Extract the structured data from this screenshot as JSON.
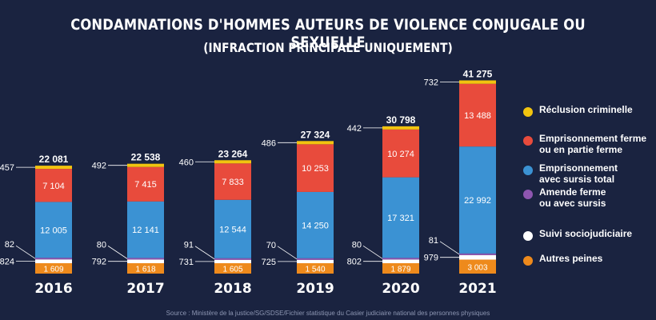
{
  "title": "CONDAMNATIONS D'HOMMES AUTEURS  DE VIOLENCE CONJUGALE OU SEXUELLE",
  "subtitle": "(INFRACTION PRINCIPALE UNIQUEMENT)",
  "source": "Source : Ministère de la justice/SG/SDSE/Fichier statistique du Casier judiciaire national des personnes physiques",
  "colors": {
    "reclusion": "#f2c40f",
    "emprisonnement_ferme": "#e84b3c",
    "emprisonnement_sursis": "#3b92d3",
    "amende": "#8e56b0",
    "suivi": "#ffffff",
    "autres": "#ee8a1c",
    "background": "#1a2340"
  },
  "legend": [
    {
      "key": "reclusion",
      "label": "Réclusion criminelle"
    },
    {
      "key": "emprisonnement_ferme",
      "label": "Emprisonnement ferme\nou en partie ferme"
    },
    {
      "key": "emprisonnement_sursis",
      "label": "Emprisonnement\navec sursis total"
    },
    {
      "key": "amende",
      "label": "Amende ferme\nou avec sursis"
    },
    {
      "key": "suivi",
      "label": "Suivi sociojudiciaire"
    },
    {
      "key": "autres",
      "label": "Autres peines"
    }
  ],
  "chart_data": {
    "type": "bar",
    "stacked": true,
    "title": "CONDAMNATIONS D'HOMMES AUTEURS  DE VIOLENCE CONJUGALE OU SEXUELLE",
    "subtitle": "(INFRACTION PRINCIPALE UNIQUEMENT)",
    "categories": [
      "2016",
      "2017",
      "2018",
      "2019",
      "2020",
      "2021"
    ],
    "totals": [
      "22 081",
      "22 538",
      "23 264",
      "27 324",
      "30 798",
      "41 275"
    ],
    "legend_position": "right",
    "series": [
      {
        "key": "autres",
        "name": "Autres peines",
        "values": [
          1609,
          1618,
          1605,
          1540,
          1879,
          3003
        ],
        "labels": [
          "1 609",
          "1 618",
          "1 605",
          "1 540",
          "1 879",
          "3 003"
        ]
      },
      {
        "key": "suivi",
        "name": "Suivi sociojudiciaire",
        "values": [
          824,
          792,
          731,
          725,
          802,
          979
        ],
        "labels": [
          "824",
          "792",
          "731",
          "725",
          "802",
          "979"
        ]
      },
      {
        "key": "amende",
        "name": "Amende ferme ou avec sursis",
        "values": [
          82,
          80,
          91,
          70,
          80,
          81
        ],
        "labels": [
          "82",
          "80",
          "91",
          "70",
          "80",
          "81"
        ]
      },
      {
        "key": "emprisonnement_sursis",
        "name": "Emprisonnement avec sursis total",
        "values": [
          12005,
          12141,
          12544,
          14250,
          17321,
          22992
        ],
        "labels": [
          "12 005",
          "12 141",
          "12 544",
          "14 250",
          "17 321",
          "22 992"
        ]
      },
      {
        "key": "emprisonnement_ferme",
        "name": "Emprisonnement ferme ou en partie ferme",
        "values": [
          7104,
          7415,
          7833,
          10253,
          10274,
          13488
        ],
        "labels": [
          "7 104",
          "7 415",
          "7 833",
          "10 253",
          "10 274",
          "13 488"
        ]
      },
      {
        "key": "reclusion",
        "name": "Réclusion criminelle",
        "values": [
          457,
          492,
          460,
          486,
          442,
          732
        ],
        "labels": [
          "457",
          "492",
          "460",
          "486",
          "442",
          "732"
        ]
      }
    ]
  }
}
